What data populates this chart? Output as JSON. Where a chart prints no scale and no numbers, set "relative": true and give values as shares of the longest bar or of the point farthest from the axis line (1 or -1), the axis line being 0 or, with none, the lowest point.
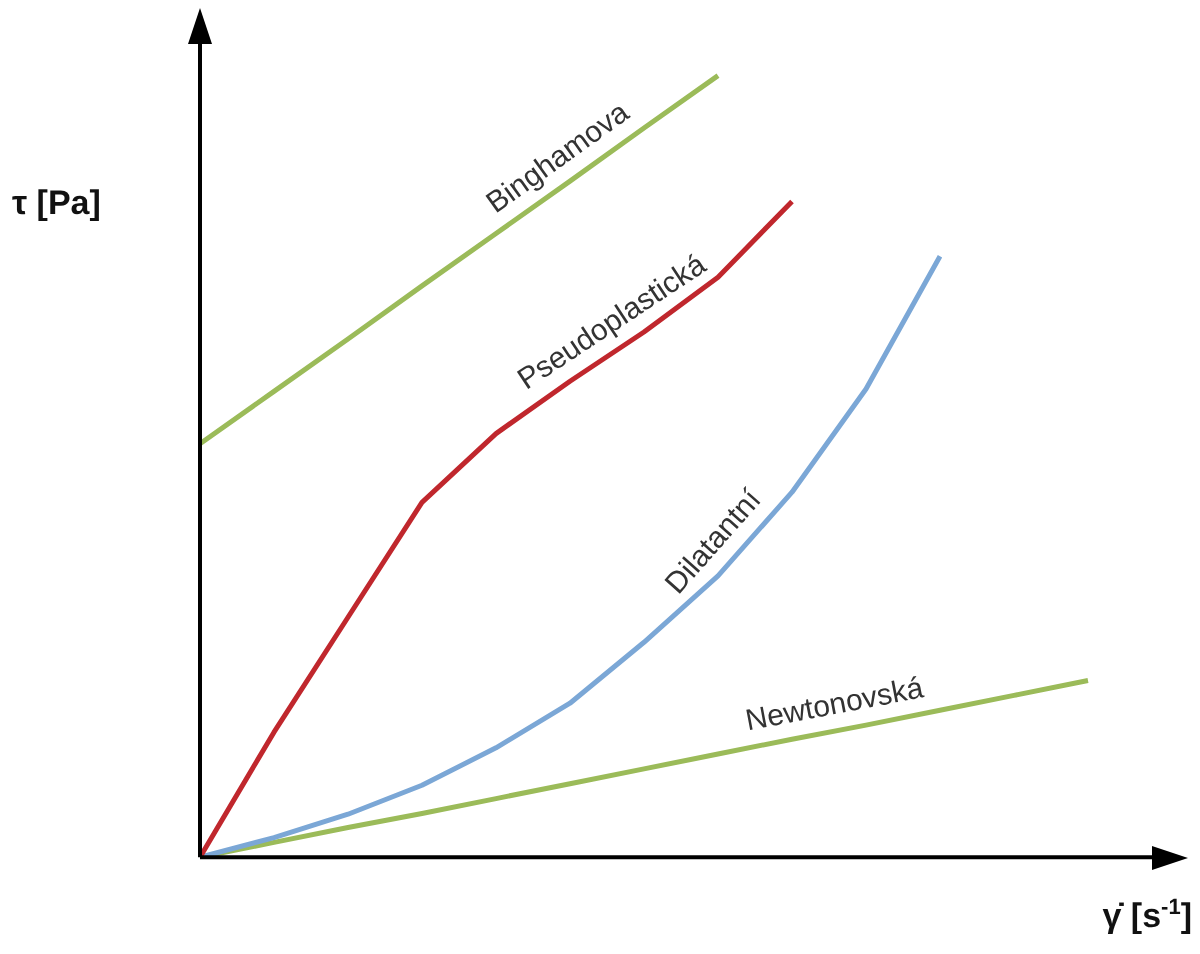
{
  "chart_data": {
    "type": "line",
    "relative": true,
    "xlabel": "γ̇ [s$^{-1}$]",
    "ylabel": "τ [Pa]",
    "grid": false,
    "legend": false,
    "marker": "none",
    "line_style": "solid",
    "categories": [
      null,
      null,
      null,
      null,
      null,
      null,
      null,
      null,
      null,
      null,
      null,
      null,
      null
    ],
    "series": [
      {
        "name": "Binghamova",
        "color": "#9bbb59",
        "values": [
          0.529,
          0.596,
          0.663,
          0.731,
          0.798,
          0.865,
          0.933,
          1.0,
          null,
          null,
          null,
          null,
          null
        ]
      },
      {
        "name": "Pseudoplastická",
        "color": "#c0272d",
        "values": [
          0,
          0.16,
          0.307,
          0.454,
          0.542,
          0.609,
          0.672,
          0.742,
          0.839,
          null,
          null,
          null,
          null
        ]
      },
      {
        "name": "Dilatantní",
        "color": "#7ba7d6",
        "values": [
          0,
          0.025,
          0.055,
          0.092,
          0.14,
          0.197,
          0.275,
          0.36,
          0.467,
          0.599,
          0.769,
          null,
          null
        ]
      },
      {
        "name": "Newtonovská",
        "color": "#9bbb59",
        "values": [
          0,
          0.019,
          0.038,
          0.056,
          0.075,
          0.094,
          0.113,
          0.132,
          0.151,
          0.169,
          0.188,
          0.207,
          0.226
        ]
      }
    ]
  }
}
